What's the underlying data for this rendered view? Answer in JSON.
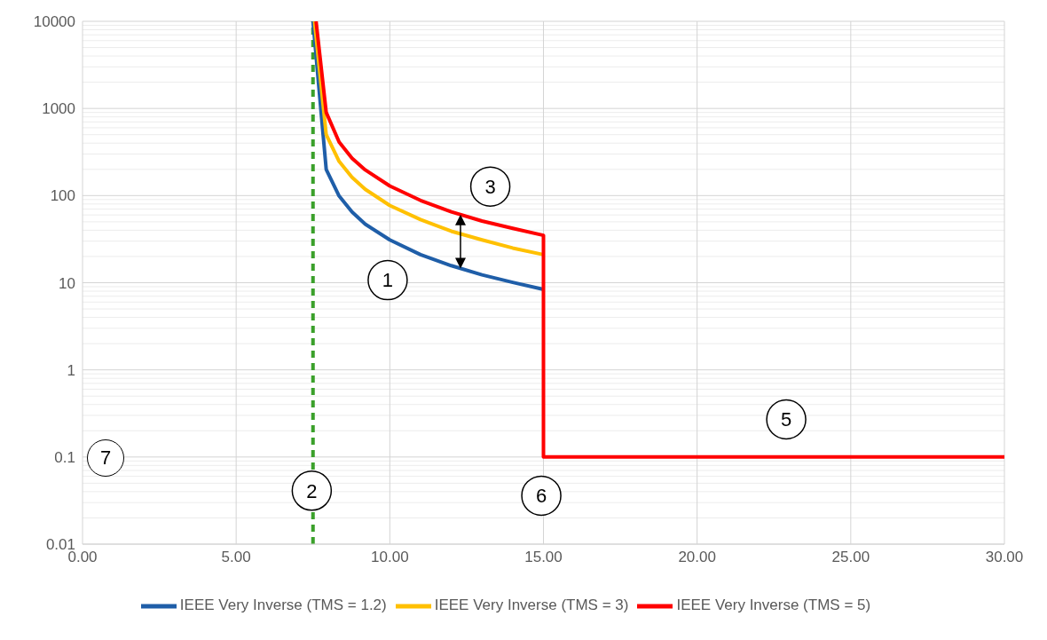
{
  "chart_data": {
    "type": "line",
    "log": "y",
    "grid": true,
    "legend": "bottom",
    "line_style": "solid",
    "marker": "none",
    "xlim": [
      0,
      30
    ],
    "xticks": [
      {
        "value": 0,
        "label": "0.00"
      },
      {
        "value": 5,
        "label": "5.00"
      },
      {
        "value": 10,
        "label": "10.00"
      },
      {
        "value": 15,
        "label": "15.00"
      },
      {
        "value": 20,
        "label": "20.00"
      },
      {
        "value": 25,
        "label": "25.00"
      },
      {
        "value": 30,
        "label": "30.00"
      }
    ],
    "ylim": [
      0.01,
      10000
    ],
    "yticks": [
      0.01,
      0.1,
      1,
      10,
      100,
      1000,
      10000
    ],
    "series": [
      {
        "name": "IEEE Very Inverse (TMS = 1.2)",
        "color": "#1f5ea8",
        "x": [
          7.5,
          7.93,
          8.35,
          8.77,
          9.2,
          10,
          11,
          12,
          13,
          14,
          15
        ],
        "values": [
          10000,
          200,
          99,
          65,
          47,
          31,
          21,
          15.7,
          12.3,
          10.1,
          8.4
        ]
      },
      {
        "name": "IEEE Very Inverse (TMS = 3)",
        "color": "#ffc000",
        "x": [
          7.55,
          7.93,
          8.35,
          8.77,
          9.2,
          10,
          11,
          12,
          13,
          14,
          15
        ],
        "values": [
          10000,
          500,
          247,
          162,
          118,
          77,
          53,
          39,
          31,
          25,
          21
        ]
      },
      {
        "name": "IEEE Very Inverse (TMS = 5)",
        "color": "#ff0000",
        "x": [
          7.6,
          7.93,
          8.35,
          8.77,
          9.2,
          10,
          11,
          12,
          13,
          14,
          15,
          15,
          30
        ],
        "values": [
          10000,
          900,
          412,
          269,
          197,
          129,
          88,
          65,
          51,
          42,
          35,
          0.1,
          0.1
        ]
      }
    ],
    "ref_lines": [
      {
        "axis": "x",
        "value": 7.5,
        "color": "#3aa02a",
        "line_style": "dashed"
      }
    ],
    "annotations": [
      {
        "text": "1",
        "x": 9.93,
        "y": 10.7
      },
      {
        "text": "2",
        "x": 7.46,
        "y": 0.041
      },
      {
        "text": "3",
        "x": 13.27,
        "y": 127
      },
      {
        "text": "5",
        "x": 22.9,
        "y": 0.27
      },
      {
        "text": "6",
        "x": 14.93,
        "y": 0.036
      },
      "7"
    ]
  }
}
